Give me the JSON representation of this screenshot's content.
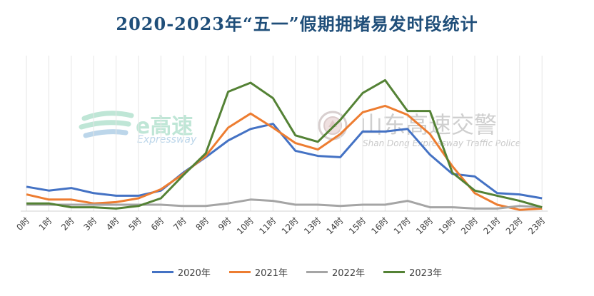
{
  "watermarks": {
    "left_main": "e高速",
    "left_sub": "Expressway",
    "right_main": "山东高速交警",
    "right_sub": "Shan Dong Expressway Traffic Police"
  },
  "chart_data": {
    "type": "line",
    "title": "2020-2023年“五一”假期拥堵易发时段统计",
    "xlabel": "",
    "ylabel": "",
    "categories": [
      "0时",
      "1时",
      "2时",
      "3时",
      "4时",
      "5时",
      "6时",
      "7时",
      "8时",
      "9时",
      "10时",
      "11时",
      "12时",
      "13时",
      "14时",
      "15时",
      "16时",
      "17时",
      "18时",
      "19时",
      "20时",
      "21时",
      "22时",
      "23时"
    ],
    "ylim": [
      0,
      100
    ],
    "grid": "vertical",
    "legend_position": "bottom",
    "series": [
      {
        "name": "2020年",
        "color": "#4472c4",
        "values": [
          19,
          16,
          18,
          14,
          12,
          12,
          16,
          30,
          42,
          55,
          64,
          68,
          47,
          43,
          42,
          62,
          62,
          64,
          44,
          29,
          27,
          14,
          13,
          10
        ]
      },
      {
        "name": "2021年",
        "color": "#ed7d31",
        "values": [
          13,
          9,
          9,
          6,
          7,
          10,
          17,
          29,
          43,
          65,
          76,
          65,
          53,
          48,
          60,
          77,
          82,
          75,
          60,
          35,
          14,
          5,
          1,
          2
        ]
      },
      {
        "name": "2022年",
        "color": "#a5a5a5",
        "values": [
          5,
          5,
          5,
          5,
          5,
          5,
          5,
          4,
          4,
          6,
          9,
          8,
          5,
          5,
          4,
          5,
          5,
          8,
          3,
          3,
          2,
          2,
          4,
          3
        ]
      },
      {
        "name": "2023年",
        "color": "#548235",
        "values": [
          6,
          6,
          3,
          3,
          2,
          4,
          10,
          28,
          45,
          93,
          100,
          88,
          59,
          54,
          71,
          92,
          102,
          78,
          78,
          30,
          16,
          12,
          8,
          3
        ]
      }
    ]
  }
}
